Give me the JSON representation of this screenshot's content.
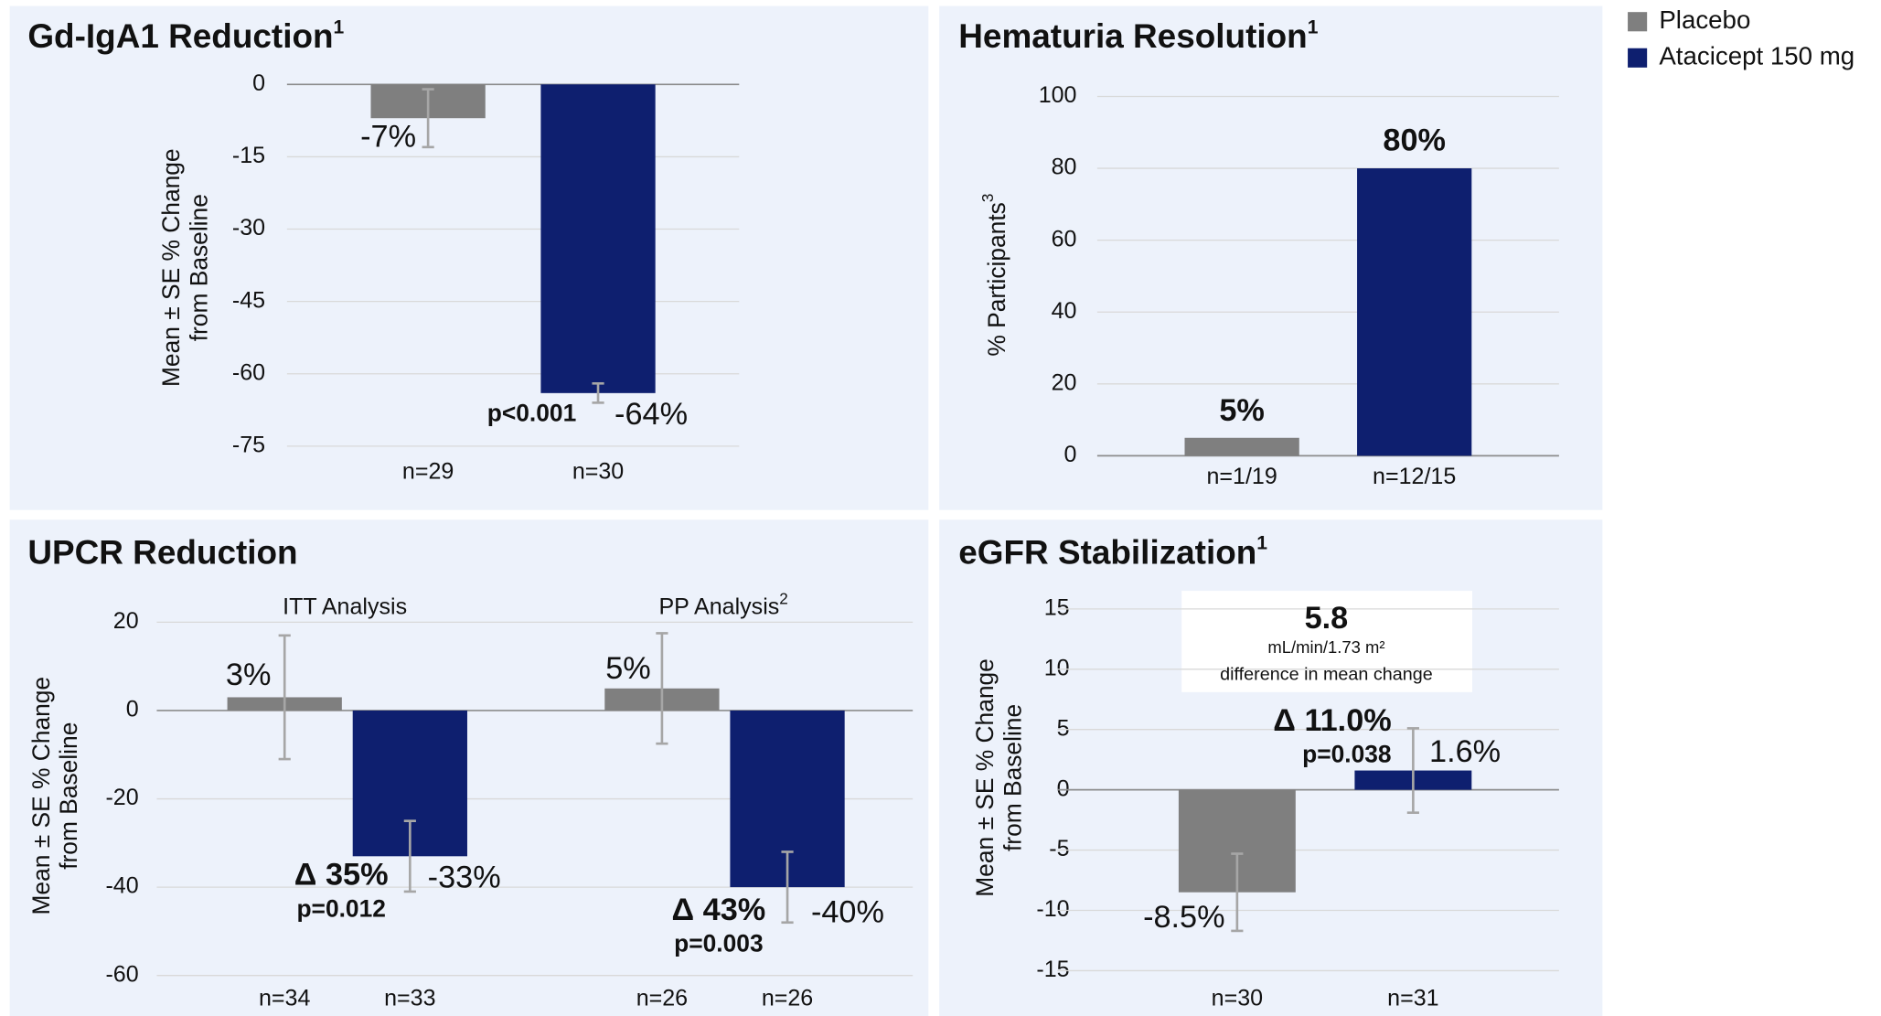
{
  "legend": {
    "position": "top-right",
    "items": [
      {
        "name": "Placebo",
        "color": "#7f7f7f"
      },
      {
        "name": "Atacicept 150 mg",
        "color": "#0e1f6f"
      }
    ]
  },
  "chart_data": [
    {
      "type": "bar",
      "title": "Gd-IgA1 Reduction",
      "title_sup": "1",
      "ylabel": [
        "Mean ± SE % Change",
        "from Baseline"
      ],
      "categories": [
        "n=29",
        "n=30"
      ],
      "values": [
        -7,
        -64
      ],
      "errors": [
        6,
        2
      ],
      "value_labels": [
        "-7%",
        "-64%"
      ],
      "colors": [
        "#7f7f7f",
        "#0e1f6f"
      ],
      "ylim": [
        -75,
        0
      ],
      "yticks": [
        -75,
        -60,
        -45,
        -30,
        -15,
        0
      ],
      "grid": true,
      "annotations": [
        "p<0.001"
      ]
    },
    {
      "type": "bar",
      "title": "Hematuria Resolution",
      "title_sup": "1",
      "ylabel": [
        "% Participants"
      ],
      "ylabel_sup": "3",
      "categories": [
        "n=1/19",
        "n=12/15"
      ],
      "values": [
        5,
        80
      ],
      "value_labels": [
        "5%",
        "80%"
      ],
      "colors": [
        "#7f7f7f",
        "#0e1f6f"
      ],
      "ylim": [
        0,
        100
      ],
      "yticks": [
        0,
        20,
        40,
        60,
        80,
        100
      ],
      "grid": true
    },
    {
      "type": "bar",
      "title": "UPCR Reduction",
      "ylabel": [
        "Mean ± SE % Change",
        "from Baseline"
      ],
      "groups": [
        {
          "label": "ITT Analysis"
        },
        {
          "label": "PP Analysis",
          "sup": "2"
        }
      ],
      "categories": [
        "n=34",
        "n=33",
        "n=26",
        "n=26"
      ],
      "values": [
        3,
        -33,
        5,
        -40
      ],
      "errors": [
        14,
        8,
        12.5,
        8
      ],
      "value_labels": [
        "3%",
        "-33%",
        "5%",
        "-40%"
      ],
      "colors": [
        "#7f7f7f",
        "#0e1f6f",
        "#7f7f7f",
        "#0e1f6f"
      ],
      "ylim": [
        -60,
        20
      ],
      "yticks": [
        -60,
        -40,
        -20,
        0,
        20
      ],
      "grid": true,
      "annotations": [
        "Δ 35%",
        "p=0.012",
        "Δ 43%",
        "p=0.003"
      ]
    },
    {
      "type": "bar",
      "title": "eGFR Stabilization",
      "title_sup": "1",
      "ylabel": [
        "Mean ± SE % Change",
        "from Baseline"
      ],
      "categories": [
        "n=30",
        "n=31"
      ],
      "values": [
        -8.5,
        1.6
      ],
      "errors": [
        3.2,
        3.5
      ],
      "value_labels": [
        "-8.5%",
        "1.6%"
      ],
      "colors": [
        "#7f7f7f",
        "#0e1f6f"
      ],
      "ylim": [
        -15,
        15
      ],
      "yticks": [
        -15,
        -10,
        -5,
        0,
        5,
        10,
        15
      ],
      "grid": true,
      "annotations": [
        "5.8",
        "mL/min/1.73 m²",
        "difference in mean change",
        "Δ 11.0%",
        "p=0.038"
      ]
    }
  ]
}
